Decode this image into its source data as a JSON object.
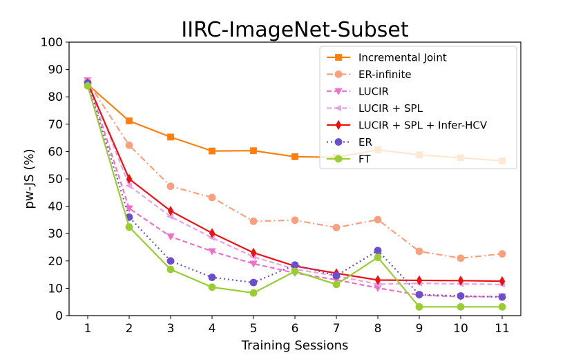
{
  "chart_data": {
    "type": "line",
    "title": "IIRC-ImageNet-Subset",
    "xlabel": "Training Sessions",
    "ylabel": "pw-JS (%)",
    "x": [
      1,
      2,
      3,
      4,
      5,
      6,
      7,
      8,
      9,
      10,
      11
    ],
    "xlim": [
      0.55,
      11.45
    ],
    "ylim": [
      0,
      100
    ],
    "yticks": [
      0,
      10,
      20,
      30,
      40,
      50,
      60,
      70,
      80,
      90,
      100
    ],
    "legend_position": "top-right",
    "grid": false,
    "series": [
      {
        "name": "Incremental Joint",
        "color": "#ff7f0e",
        "dash": "solid",
        "marker": "square",
        "values": [
          84.5,
          71.2,
          65.3,
          60.2,
          60.3,
          58.1,
          57.9,
          60.6,
          58.8,
          57.7,
          56.6
        ]
      },
      {
        "name": "ER-infinite",
        "color": "#f9a07f",
        "dash": "dashdot",
        "marker": "circle",
        "values": [
          85.5,
          62.3,
          47.3,
          43.2,
          34.5,
          34.9,
          32.2,
          35.1,
          23.5,
          21.0,
          22.6
        ]
      },
      {
        "name": "LUCIR",
        "color": "#f26fc6",
        "dash": "dashed",
        "marker": "triangle-down",
        "values": [
          86.0,
          39.2,
          28.9,
          23.5,
          19.0,
          15.6,
          13.1,
          10.1,
          7.5,
          6.9,
          7.0
        ]
      },
      {
        "name": "LUCIR + SPL",
        "color": "#e6a3e6",
        "dash": "dashed",
        "marker": "triangle-left",
        "values": [
          86.0,
          47.5,
          36.2,
          28.5,
          21.5,
          17.0,
          14.5,
          11.5,
          11.8,
          11.6,
          11.4
        ]
      },
      {
        "name": "LUCIR + SPL + Infer-HCV",
        "color": "#ee1111",
        "dash": "solid",
        "marker": "diamond",
        "values": [
          85.0,
          50.0,
          38.3,
          30.2,
          23.0,
          18.1,
          15.5,
          13.0,
          12.9,
          12.8,
          12.6
        ]
      },
      {
        "name": "ER",
        "color": "#6a4ecb",
        "dash": "dotted",
        "marker": "circle",
        "values": [
          85.0,
          36.0,
          20.0,
          14.0,
          12.1,
          18.5,
          14.6,
          23.8,
          7.7,
          7.2,
          6.8
        ]
      },
      {
        "name": "FT",
        "color": "#9acd32",
        "dash": "solid",
        "marker": "circle",
        "values": [
          84.0,
          32.4,
          16.9,
          10.4,
          8.3,
          16.2,
          11.4,
          21.3,
          3.2,
          3.2,
          3.2
        ]
      }
    ]
  }
}
